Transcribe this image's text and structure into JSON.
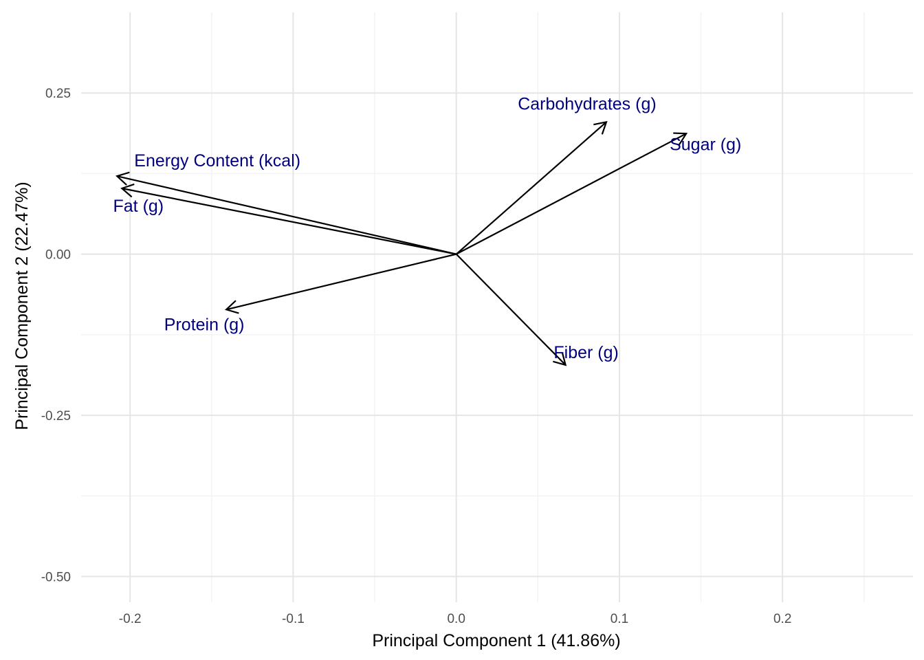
{
  "chart_data": {
    "type": "biplot",
    "xlabel": "Principal Component 1 (41.86%)",
    "ylabel": "Principal Component 2 (22.47%)",
    "xlim": [
      -0.23,
      0.28
    ],
    "ylim": [
      -0.54,
      0.375
    ],
    "x_ticks": [
      -0.2,
      -0.1,
      0.0,
      0.1,
      0.2
    ],
    "x_tick_labels": [
      "-0.2",
      "-0.1",
      "0.0",
      "0.1",
      "0.2"
    ],
    "y_ticks": [
      -0.5,
      -0.25,
      0.0,
      0.25
    ],
    "y_tick_labels": [
      "-0.50",
      "-0.25",
      "0.00",
      "0.25"
    ],
    "grid": true,
    "vectors": [
      {
        "label": "Carbohydrates (g)",
        "x": 0.092,
        "y": 0.205
      },
      {
        "label": "Sugar (g)",
        "x": 0.141,
        "y": 0.187
      },
      {
        "label": "Energy Content (kcal)",
        "x": -0.208,
        "y": 0.121
      },
      {
        "label": "Fat (g)",
        "x": -0.205,
        "y": 0.102
      },
      {
        "label": "Protein (g)",
        "x": -0.141,
        "y": -0.086
      },
      {
        "label": "Fiber (g)",
        "x": 0.067,
        "y": -0.172
      }
    ],
    "colors": {
      "arrow": "#000000",
      "label": "#00007f",
      "grid_major": "#e5e5e5",
      "grid_minor": "#f2f2f2",
      "tick_text": "#4d4d4d"
    }
  }
}
